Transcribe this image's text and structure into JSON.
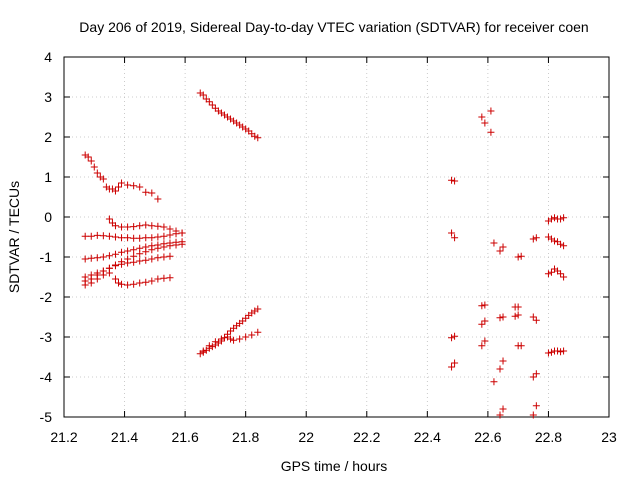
{
  "chart_data": {
    "type": "scatter",
    "title": "Day 206 of 2019, Sidereal Day-to-day VTEC variation (SDTVAR) for receiver coen",
    "xlabel": "GPS time / hours",
    "ylabel": "SDTVAR / TECUs",
    "xlim": [
      21.2,
      23
    ],
    "ylim": [
      -5,
      4
    ],
    "xticks": [
      "21.2",
      "21.4",
      "21.6",
      "21.8",
      "22",
      "22.2",
      "22.4",
      "22.6",
      "22.8",
      "23"
    ],
    "yticks": [
      "-5",
      "-4",
      "-3",
      "-2",
      "-1",
      "0",
      "1",
      "2",
      "3",
      "4"
    ],
    "grid": true,
    "marker": "plus",
    "color": "#cc0000",
    "series": [
      {
        "name": "t1",
        "points": [
          [
            21.27,
            1.55
          ],
          [
            21.28,
            1.5
          ],
          [
            21.29,
            1.4
          ],
          [
            21.3,
            1.25
          ],
          [
            21.31,
            1.1
          ],
          [
            21.32,
            1.0
          ],
          [
            21.33,
            0.95
          ],
          [
            21.34,
            0.75
          ],
          [
            21.35,
            0.7
          ],
          [
            21.36,
            0.7
          ],
          [
            21.37,
            0.65
          ],
          [
            21.38,
            0.75
          ],
          [
            21.39,
            0.85
          ],
          [
            21.41,
            0.8
          ],
          [
            21.43,
            0.78
          ],
          [
            21.45,
            0.75
          ],
          [
            21.47,
            0.62
          ],
          [
            21.49,
            0.6
          ],
          [
            21.51,
            0.45
          ]
        ]
      },
      {
        "name": "t2",
        "points": [
          [
            21.27,
            -0.48
          ],
          [
            21.29,
            -0.48
          ],
          [
            21.31,
            -0.46
          ],
          [
            21.33,
            -0.47
          ],
          [
            21.35,
            -0.48
          ],
          [
            21.37,
            -0.5
          ],
          [
            21.39,
            -0.52
          ],
          [
            21.41,
            -0.52
          ],
          [
            21.43,
            -0.53
          ],
          [
            21.45,
            -0.53
          ],
          [
            21.47,
            -0.52
          ],
          [
            21.49,
            -0.52
          ],
          [
            21.51,
            -0.5
          ],
          [
            21.53,
            -0.48
          ],
          [
            21.55,
            -0.45
          ],
          [
            21.57,
            -0.42
          ],
          [
            21.59,
            -0.4
          ]
        ]
      },
      {
        "name": "t3",
        "points": [
          [
            21.35,
            -0.05
          ],
          [
            21.36,
            -0.15
          ],
          [
            21.37,
            -0.22
          ],
          [
            21.39,
            -0.25
          ],
          [
            21.41,
            -0.25
          ],
          [
            21.43,
            -0.24
          ],
          [
            21.45,
            -0.22
          ],
          [
            21.47,
            -0.2
          ],
          [
            21.49,
            -0.22
          ],
          [
            21.51,
            -0.23
          ],
          [
            21.53,
            -0.25
          ],
          [
            21.55,
            -0.3
          ],
          [
            21.57,
            -0.35
          ],
          [
            21.59,
            -0.4
          ]
        ]
      },
      {
        "name": "t4",
        "points": [
          [
            21.27,
            -1.05
          ],
          [
            21.29,
            -1.03
          ],
          [
            21.31,
            -1.02
          ],
          [
            21.33,
            -1.0
          ],
          [
            21.35,
            -0.97
          ],
          [
            21.37,
            -0.93
          ],
          [
            21.39,
            -0.88
          ],
          [
            21.41,
            -0.85
          ],
          [
            21.43,
            -0.82
          ],
          [
            21.45,
            -0.78
          ],
          [
            21.47,
            -0.75
          ],
          [
            21.49,
            -0.72
          ],
          [
            21.51,
            -0.7
          ],
          [
            21.53,
            -0.67
          ],
          [
            21.55,
            -0.65
          ],
          [
            21.57,
            -0.63
          ],
          [
            21.59,
            -0.62
          ]
        ]
      },
      {
        "name": "t5",
        "points": [
          [
            21.27,
            -1.5
          ],
          [
            21.29,
            -1.45
          ],
          [
            21.31,
            -1.4
          ],
          [
            21.33,
            -1.35
          ],
          [
            21.35,
            -1.28
          ],
          [
            21.37,
            -1.2
          ],
          [
            21.39,
            -1.12
          ],
          [
            21.41,
            -1.05
          ],
          [
            21.43,
            -0.98
          ],
          [
            21.45,
            -0.92
          ],
          [
            21.47,
            -0.87
          ],
          [
            21.49,
            -0.82
          ],
          [
            21.51,
            -0.78
          ],
          [
            21.53,
            -0.75
          ],
          [
            21.55,
            -0.72
          ],
          [
            21.57,
            -0.7
          ],
          [
            21.59,
            -0.68
          ]
        ]
      },
      {
        "name": "t6",
        "points": [
          [
            21.27,
            -1.6
          ],
          [
            21.29,
            -1.55
          ],
          [
            21.31,
            -1.45
          ],
          [
            21.33,
            -1.35
          ],
          [
            21.35,
            -1.28
          ],
          [
            21.37,
            -1.22
          ],
          [
            21.39,
            -1.18
          ],
          [
            21.41,
            -1.15
          ],
          [
            21.43,
            -1.13
          ],
          [
            21.45,
            -1.1
          ],
          [
            21.47,
            -1.08
          ],
          [
            21.49,
            -1.05
          ],
          [
            21.51,
            -1.02
          ],
          [
            21.53,
            -1.0
          ],
          [
            21.55,
            -0.98
          ]
        ]
      },
      {
        "name": "t7",
        "points": [
          [
            21.27,
            -1.7
          ],
          [
            21.29,
            -1.65
          ],
          [
            21.31,
            -1.55
          ],
          [
            21.33,
            -1.45
          ],
          [
            21.35,
            -1.4
          ],
          [
            21.37,
            -1.55
          ],
          [
            21.38,
            -1.65
          ],
          [
            21.39,
            -1.68
          ],
          [
            21.41,
            -1.7
          ],
          [
            21.43,
            -1.68
          ],
          [
            21.45,
            -1.65
          ],
          [
            21.47,
            -1.63
          ],
          [
            21.49,
            -1.6
          ],
          [
            21.51,
            -1.55
          ],
          [
            21.53,
            -1.53
          ],
          [
            21.55,
            -1.52
          ]
        ]
      },
      {
        "name": "t8",
        "points": [
          [
            21.65,
            3.1
          ],
          [
            21.66,
            3.05
          ],
          [
            21.67,
            2.95
          ],
          [
            21.68,
            2.88
          ],
          [
            21.69,
            2.8
          ],
          [
            21.7,
            2.72
          ],
          [
            21.71,
            2.65
          ],
          [
            21.72,
            2.6
          ],
          [
            21.73,
            2.55
          ],
          [
            21.74,
            2.5
          ],
          [
            21.75,
            2.45
          ],
          [
            21.76,
            2.4
          ],
          [
            21.77,
            2.35
          ],
          [
            21.78,
            2.3
          ],
          [
            21.79,
            2.25
          ],
          [
            21.8,
            2.2
          ],
          [
            21.81,
            2.15
          ],
          [
            21.82,
            2.08
          ],
          [
            21.83,
            2.02
          ],
          [
            21.84,
            1.98
          ]
        ]
      },
      {
        "name": "t9",
        "points": [
          [
            21.65,
            -3.42
          ],
          [
            21.66,
            -3.38
          ],
          [
            21.67,
            -3.33
          ],
          [
            21.68,
            -3.28
          ],
          [
            21.69,
            -3.24
          ],
          [
            21.7,
            -3.2
          ],
          [
            21.71,
            -3.15
          ],
          [
            21.72,
            -3.1
          ],
          [
            21.73,
            -3.02
          ],
          [
            21.74,
            -2.93
          ],
          [
            21.75,
            -2.85
          ],
          [
            21.76,
            -2.78
          ],
          [
            21.77,
            -2.72
          ],
          [
            21.78,
            -2.66
          ],
          [
            21.79,
            -2.6
          ],
          [
            21.8,
            -2.53
          ],
          [
            21.81,
            -2.46
          ],
          [
            21.82,
            -2.4
          ],
          [
            21.83,
            -2.35
          ],
          [
            21.84,
            -2.3
          ]
        ]
      },
      {
        "name": "t10",
        "points": [
          [
            21.66,
            -3.35
          ],
          [
            21.68,
            -3.22
          ],
          [
            21.7,
            -3.12
          ],
          [
            21.72,
            -3.05
          ],
          [
            21.74,
            -3.0
          ],
          [
            21.75,
            -3.05
          ],
          [
            21.76,
            -3.08
          ],
          [
            21.78,
            -3.05
          ],
          [
            21.8,
            -3.0
          ],
          [
            21.82,
            -2.95
          ],
          [
            21.84,
            -2.88
          ]
        ]
      },
      {
        "name": "r1",
        "points": [
          [
            22.48,
            0.92
          ],
          [
            22.49,
            0.9
          ],
          [
            22.48,
            -0.4
          ],
          [
            22.49,
            -0.52
          ],
          [
            22.48,
            -3.02
          ],
          [
            22.49,
            -2.98
          ],
          [
            22.48,
            -3.75
          ],
          [
            22.49,
            -3.65
          ]
        ]
      },
      {
        "name": "r2",
        "points": [
          [
            22.58,
            2.5
          ],
          [
            22.59,
            2.35
          ],
          [
            22.61,
            2.65
          ],
          [
            22.61,
            2.12
          ],
          [
            22.58,
            -2.22
          ],
          [
            22.59,
            -2.2
          ],
          [
            22.58,
            -2.68
          ],
          [
            22.59,
            -2.6
          ],
          [
            22.58,
            -3.22
          ],
          [
            22.59,
            -3.1
          ],
          [
            22.62,
            -0.65
          ],
          [
            22.62,
            -4.12
          ],
          [
            22.64,
            -0.85
          ],
          [
            22.65,
            -0.75
          ],
          [
            22.64,
            -2.52
          ],
          [
            22.65,
            -2.5
          ],
          [
            22.64,
            -3.8
          ],
          [
            22.65,
            -3.6
          ],
          [
            22.64,
            -4.95
          ],
          [
            22.65,
            -4.8
          ],
          [
            22.69,
            -2.25
          ],
          [
            22.7,
            -2.25
          ],
          [
            22.69,
            -2.48
          ],
          [
            22.7,
            -2.45
          ],
          [
            22.7,
            -1.0
          ],
          [
            22.71,
            -0.98
          ],
          [
            22.7,
            -3.22
          ],
          [
            22.71,
            -3.22
          ],
          [
            22.75,
            -0.55
          ],
          [
            22.76,
            -0.52
          ],
          [
            22.75,
            -2.5
          ],
          [
            22.76,
            -2.58
          ],
          [
            22.75,
            -4.0
          ],
          [
            22.76,
            -3.92
          ],
          [
            22.76,
            -4.72
          ],
          [
            22.75,
            -4.95
          ]
        ]
      },
      {
        "name": "r3",
        "points": [
          [
            22.8,
            -0.1
          ],
          [
            22.81,
            -0.05
          ],
          [
            22.82,
            -0.02
          ],
          [
            22.83,
            -0.05
          ],
          [
            22.84,
            -0.05
          ],
          [
            22.85,
            -0.02
          ],
          [
            22.8,
            -0.5
          ],
          [
            22.81,
            -0.55
          ],
          [
            22.82,
            -0.6
          ],
          [
            22.83,
            -0.62
          ],
          [
            22.84,
            -0.68
          ],
          [
            22.85,
            -0.72
          ],
          [
            22.8,
            -1.42
          ],
          [
            22.81,
            -1.38
          ],
          [
            22.82,
            -1.3
          ],
          [
            22.83,
            -1.35
          ],
          [
            22.84,
            -1.42
          ],
          [
            22.85,
            -1.5
          ],
          [
            22.8,
            -3.4
          ],
          [
            22.81,
            -3.38
          ],
          [
            22.82,
            -3.35
          ],
          [
            22.83,
            -3.35
          ],
          [
            22.84,
            -3.37
          ],
          [
            22.85,
            -3.35
          ]
        ]
      }
    ]
  }
}
